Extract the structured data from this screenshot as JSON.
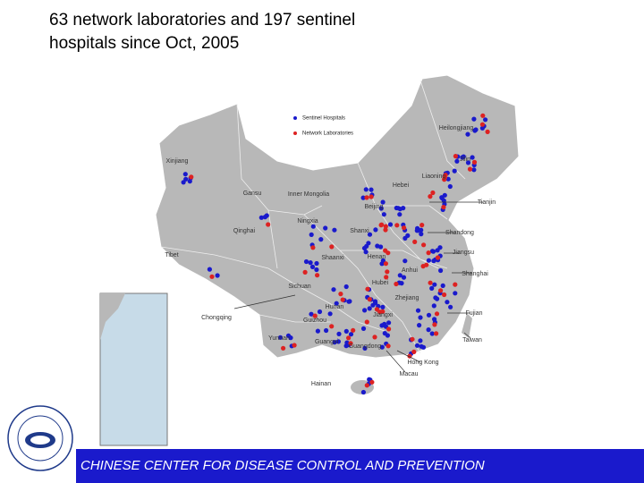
{
  "header": {
    "title_lines": [
      "63 network laboratories and 197 sentinel",
      "hospitals  since Oct, 2005"
    ]
  },
  "map": {
    "legend": [
      "Sentinel Hospitals",
      "Network Laboratories"
    ],
    "labels": [
      "Heilongjiang",
      "Jilin",
      "Liaoning",
      "Xinjiang",
      "Gansu",
      "Inner Mongolia",
      "Hebei",
      "Beijing",
      "Tianjin",
      "Ningxia",
      "Shanxi",
      "Qinghai",
      "Shandong",
      "Jiangsu",
      "Shaanxi",
      "Henan",
      "Anhui",
      "Shanghai",
      "Tibet",
      "Sichuan",
      "Hubei",
      "Zhejiang",
      "Chongqing",
      "Hunan",
      "Jiangxi",
      "Fujian",
      "Guizhou",
      "Yunnan",
      "Guangxi",
      "Guangdong",
      "Taiwan",
      "Hong Kong",
      "Macau",
      "Hainan"
    ]
  },
  "footer": {
    "text": "CHINESE CENTER FOR DISEASE CONTROL AND PREVENTION"
  }
}
